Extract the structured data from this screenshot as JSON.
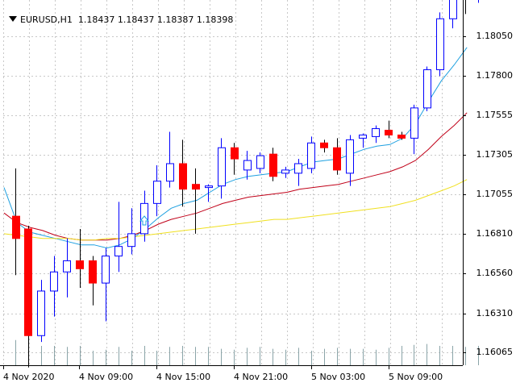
{
  "window": {
    "symbol_timeframe": "EURUSD,H1",
    "ohlc_readout": "1.18437 1.18437 1.18387 1.18398"
  },
  "colors": {
    "background": "#ffffff",
    "grid": "#c8c8c8",
    "bull_candle": "#0000ff",
    "bear_candle": "#ff0000",
    "ma_fast": "#1ea0e0",
    "ma_medium": "#c00018",
    "ma_slow": "#f0e020",
    "volume": "#8aa4a8",
    "signal_arrow": "#1ea0e0"
  },
  "icons": {
    "dropdown": "triangle-down-icon",
    "signal": "arrow-up-icon"
  },
  "chart_data": {
    "type": "candlestick",
    "title": "EURUSD,H1",
    "price_axis_labels": [
      "1.18050",
      "1.17800",
      "1.17555",
      "1.17305",
      "1.17055",
      "1.16810",
      "1.16560",
      "1.16310",
      "1.16065"
    ],
    "time_axis_labels": [
      "4 Nov 2020",
      "4 Nov 09:00",
      "4 Nov 15:00",
      "4 Nov 21:00",
      "5 Nov 03:00",
      "5 Nov 09:00"
    ],
    "ylim": [
      1.1595,
      1.1845
    ],
    "grid": true,
    "candles": [
      {
        "o": 1.1692,
        "h": 1.1722,
        "l": 1.1655,
        "c": 1.1678
      },
      {
        "o": 1.1684,
        "h": 1.1686,
        "l": 1.1597,
        "c": 1.1617
      },
      {
        "o": 1.1617,
        "h": 1.1652,
        "l": 1.1613,
        "c": 1.1645
      },
      {
        "o": 1.1645,
        "h": 1.1667,
        "l": 1.1629,
        "c": 1.1657
      },
      {
        "o": 1.1657,
        "h": 1.1678,
        "l": 1.1641,
        "c": 1.1664
      },
      {
        "o": 1.1664,
        "h": 1.1684,
        "l": 1.1647,
        "c": 1.1659
      },
      {
        "o": 1.1664,
        "h": 1.1667,
        "l": 1.1636,
        "c": 1.165
      },
      {
        "o": 1.165,
        "h": 1.1672,
        "l": 1.1626,
        "c": 1.1667
      },
      {
        "o": 1.1667,
        "h": 1.1701,
        "l": 1.1657,
        "c": 1.1673
      },
      {
        "o": 1.1673,
        "h": 1.1697,
        "l": 1.1668,
        "c": 1.1681
      },
      {
        "o": 1.1681,
        "h": 1.1708,
        "l": 1.1676,
        "c": 1.17
      },
      {
        "o": 1.17,
        "h": 1.1724,
        "l": 1.1692,
        "c": 1.1714
      },
      {
        "o": 1.1714,
        "h": 1.1745,
        "l": 1.171,
        "c": 1.1725
      },
      {
        "o": 1.1725,
        "h": 1.174,
        "l": 1.1698,
        "c": 1.1709
      },
      {
        "o": 1.1712,
        "h": 1.1722,
        "l": 1.1681,
        "c": 1.1709
      },
      {
        "o": 1.171,
        "h": 1.1712,
        "l": 1.1701,
        "c": 1.1711
      },
      {
        "o": 1.1711,
        "h": 1.1741,
        "l": 1.1703,
        "c": 1.1735
      },
      {
        "o": 1.1735,
        "h": 1.1738,
        "l": 1.1718,
        "c": 1.1728
      },
      {
        "o": 1.1721,
        "h": 1.1733,
        "l": 1.1715,
        "c": 1.1727
      },
      {
        "o": 1.1722,
        "h": 1.1732,
        "l": 1.1719,
        "c": 1.173
      },
      {
        "o": 1.1731,
        "h": 1.1735,
        "l": 1.1714,
        "c": 1.1717
      },
      {
        "o": 1.1719,
        "h": 1.1723,
        "l": 1.1716,
        "c": 1.1721
      },
      {
        "o": 1.1719,
        "h": 1.1728,
        "l": 1.1711,
        "c": 1.1725
      },
      {
        "o": 1.1722,
        "h": 1.1742,
        "l": 1.1719,
        "c": 1.1738
      },
      {
        "o": 1.1738,
        "h": 1.174,
        "l": 1.1732,
        "c": 1.1735
      },
      {
        "o": 1.1735,
        "h": 1.1741,
        "l": 1.1718,
        "c": 1.1721
      },
      {
        "o": 1.1719,
        "h": 1.1743,
        "l": 1.1711,
        "c": 1.174
      },
      {
        "o": 1.1741,
        "h": 1.1744,
        "l": 1.1735,
        "c": 1.1743
      },
      {
        "o": 1.1742,
        "h": 1.1749,
        "l": 1.1738,
        "c": 1.1747
      },
      {
        "o": 1.1746,
        "h": 1.1752,
        "l": 1.1741,
        "c": 1.1743
      },
      {
        "o": 1.1743,
        "h": 1.1745,
        "l": 1.174,
        "c": 1.1741
      },
      {
        "o": 1.1741,
        "h": 1.1762,
        "l": 1.1731,
        "c": 1.176
      },
      {
        "o": 1.176,
        "h": 1.1786,
        "l": 1.1758,
        "c": 1.1784
      },
      {
        "o": 1.1784,
        "h": 1.182,
        "l": 1.178,
        "c": 1.1816
      },
      {
        "o": 1.1816,
        "h": 1.1834,
        "l": 1.181,
        "c": 1.183
      },
      {
        "o": 1.183,
        "h": 1.1833,
        "l": 1.1819,
        "c": 1.1829
      },
      {
        "o": 1.1831,
        "h": 1.1844,
        "l": 1.1826,
        "c": 1.1844
      }
    ],
    "moving_averages": [
      {
        "color": "ma_fast",
        "values": [
          1.171,
          1.1688,
          1.1682,
          1.168,
          1.1678,
          1.1676,
          1.1674,
          1.1674,
          1.1672,
          1.1674,
          1.1678,
          1.1684,
          1.1691,
          1.1697,
          1.17,
          1.1702,
          1.1707,
          1.1712,
          1.1715,
          1.1717,
          1.1718,
          1.1719,
          1.172,
          1.1723,
          1.1726,
          1.1727,
          1.1728,
          1.1731,
          1.1734,
          1.1736,
          1.1737,
          1.1741,
          1.175,
          1.1764,
          1.1777,
          1.1787,
          1.1798
        ]
      },
      {
        "color": "ma_medium",
        "values": [
          1.1694,
          1.1688,
          1.1685,
          1.1683,
          1.168,
          1.1678,
          1.1677,
          1.1677,
          1.1677,
          1.1678,
          1.168,
          1.1683,
          1.1687,
          1.169,
          1.1692,
          1.1694,
          1.1697,
          1.17,
          1.1702,
          1.1704,
          1.1705,
          1.1706,
          1.1707,
          1.1709,
          1.171,
          1.1711,
          1.1712,
          1.1714,
          1.1716,
          1.1718,
          1.172,
          1.1723,
          1.1727,
          1.1734,
          1.1742,
          1.1749,
          1.1757
        ]
      },
      {
        "color": "ma_slow",
        "values": [
          1.1681,
          1.168,
          1.1679,
          1.1678,
          1.1678,
          1.1678,
          1.1677,
          1.1677,
          1.1678,
          1.1678,
          1.1679,
          1.168,
          1.1681,
          1.1682,
          1.1683,
          1.1684,
          1.1685,
          1.1686,
          1.1687,
          1.1688,
          1.1689,
          1.169,
          1.169,
          1.1691,
          1.1692,
          1.1693,
          1.1694,
          1.1695,
          1.1696,
          1.1697,
          1.1698,
          1.17,
          1.1702,
          1.1705,
          1.1708,
          1.1711,
          1.1715
        ]
      }
    ],
    "volumes": [
      52,
      42,
      40,
      40,
      38,
      40,
      30,
      32,
      38,
      30,
      40,
      30,
      38,
      40,
      38,
      38,
      34,
      32,
      36,
      38,
      34,
      32,
      36,
      30,
      34,
      36,
      34,
      34,
      32,
      36,
      40,
      42,
      44,
      40,
      40,
      38,
      40
    ]
  }
}
